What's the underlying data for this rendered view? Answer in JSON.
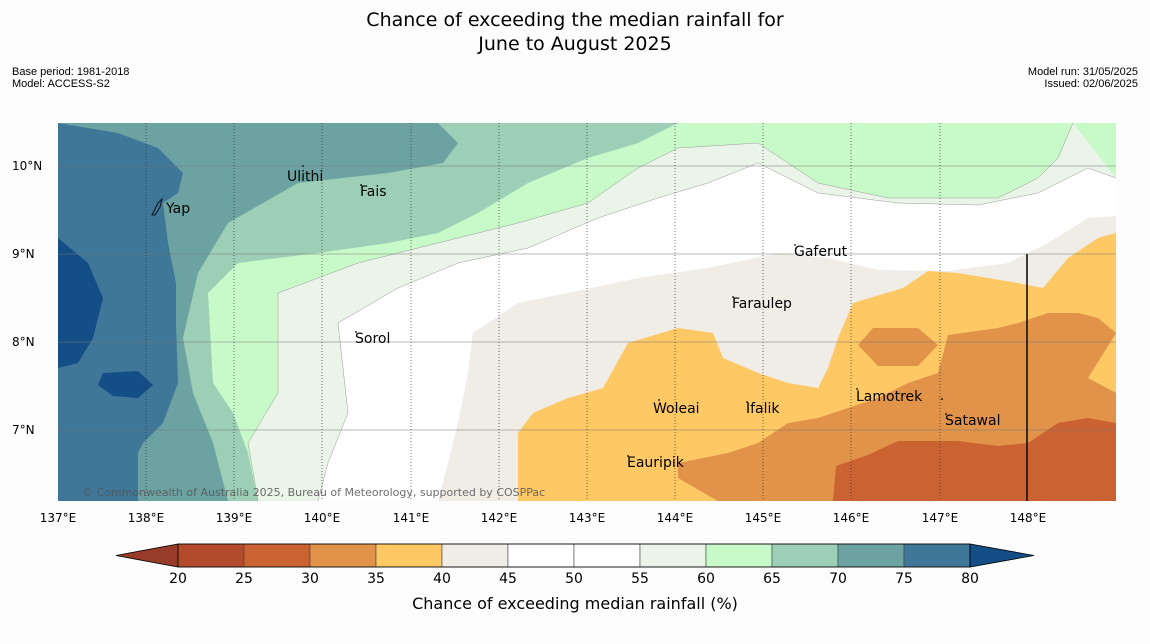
{
  "title_line1": "Chance of exceeding the median rainfall for",
  "title_line2": "June to August 2025",
  "meta_left": {
    "base_period": "Base period: 1981-2018",
    "model": "Model: ACCESS-S2"
  },
  "meta_right": {
    "model_run": "Model run: 31/05/2025",
    "issued": "Issued: 02/06/2025"
  },
  "copyright": "© Commonwealth of Australia 2025, Bureau of Meteorology, supported by COSPPac",
  "longitude_labels": [
    "137°E",
    "138°E",
    "139°E",
    "140°E",
    "141°E",
    "142°E",
    "143°E",
    "144°E",
    "145°E",
    "146°E",
    "147°E",
    "148°E"
  ],
  "latitude_labels": [
    "10°N",
    "9°N",
    "8°N",
    "7°N"
  ],
  "places": [
    {
      "name": "Yap"
    },
    {
      "name": "Ulithi"
    },
    {
      "name": "Fais"
    },
    {
      "name": "Gaferut"
    },
    {
      "name": "Faraulep"
    },
    {
      "name": "Sorol"
    },
    {
      "name": "Lamotrek"
    },
    {
      "name": "Woleai"
    },
    {
      "name": "Ifalik"
    },
    {
      "name": "Satawal"
    },
    {
      "name": "Eauripik"
    }
  ],
  "colorbar": {
    "title": "Chance of exceeding median rainfall (%)",
    "ticks": [
      "20",
      "25",
      "30",
      "35",
      "40",
      "45",
      "50",
      "55",
      "60",
      "65",
      "70",
      "75",
      "80"
    ],
    "colors": [
      "#b24a2b",
      "#cb6231",
      "#e1934a",
      "#fec864",
      "#f0ece6",
      "#ffffff",
      "#ffffff",
      "#eaf4e8",
      "#c8fac9",
      "#9ccfb6",
      "#6ca3a2",
      "#3f7799"
    ],
    "low_extend_color": "#983b2a",
    "high_extend_color": "#144e87"
  },
  "map_colors": {
    "p80": "#144e87",
    "p75": "#3f7799",
    "p70": "#6ca3a2",
    "p65": "#9ccfb6",
    "p60": "#c8fac9",
    "p55": "#eaf4e8",
    "p50": "#ffffff",
    "p45": "#f0ece6",
    "p40": "#fec864",
    "p35": "#e1934a",
    "p30": "#cb6231"
  }
}
